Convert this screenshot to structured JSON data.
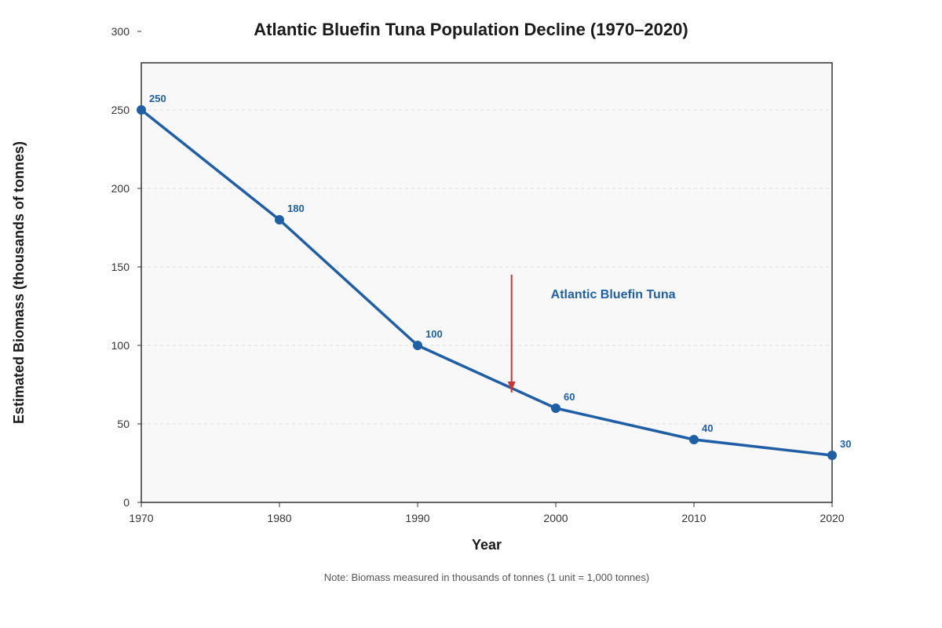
{
  "chart_data": {
    "type": "line",
    "title": "Atlantic Bluefin Tuna Population Decline (1970–2020)",
    "xlabel": "Year",
    "ylabel": "Estimated Biomass (thousands of tonnes)",
    "x": [
      1970,
      1980,
      1990,
      2000,
      2010,
      2020
    ],
    "series": [
      {
        "values": [
          250,
          180,
          100,
          60,
          40,
          30
        ]
      }
    ],
    "data_labels": [
      "250",
      "180",
      "100",
      "60",
      "40",
      "30"
    ],
    "x_ticks": [
      "1970",
      "1980",
      "1990",
      "2000",
      "2010",
      "2020"
    ],
    "y_ticks": [
      "0",
      "50",
      "100",
      "150",
      "200",
      "250",
      "300"
    ],
    "xlim": [
      1970,
      2020
    ],
    "ylim": [
      0,
      280
    ],
    "grid": "horizontal dashed",
    "annotation": {
      "text": "Atlantic Bluefin Tuna",
      "arrow_x": 1996.8,
      "arrow_from_y": 145,
      "arrow_to_y": 70
    },
    "note": "Note: Biomass measured in thousands of tonnes (1 unit = 1,000 tonnes)",
    "colors": {
      "line": "#1f5fa6",
      "arrow": "#cc3333",
      "plot_background": "#f8f8f8",
      "grid": "#dddddd"
    }
  }
}
